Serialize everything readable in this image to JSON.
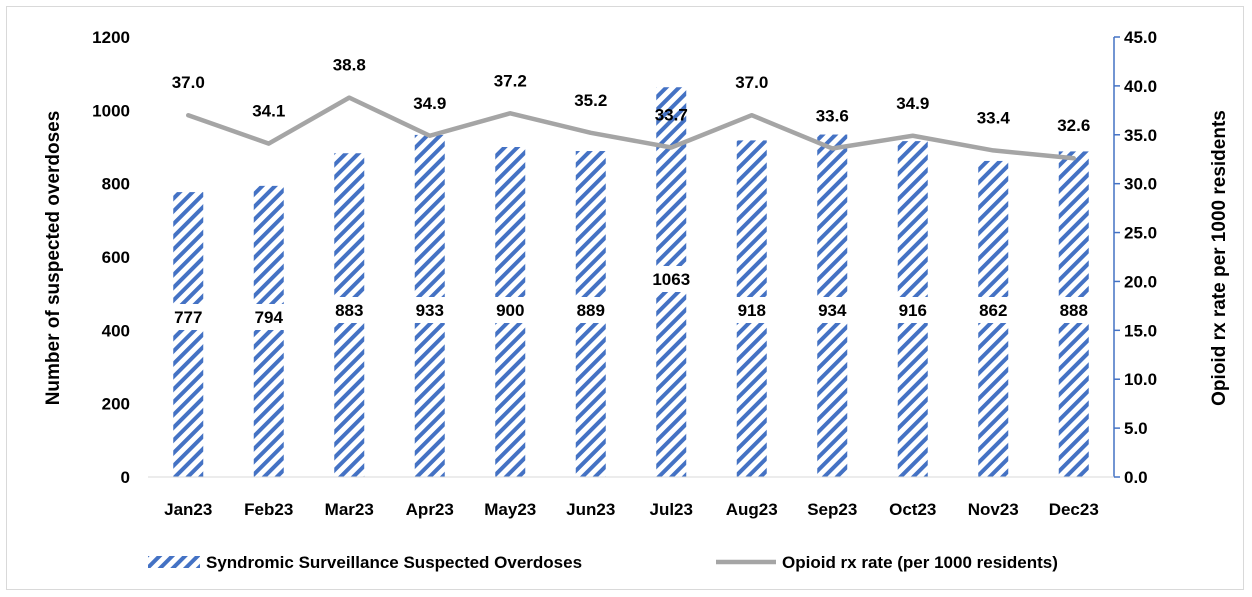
{
  "chart_data": {
    "type": "bar+line",
    "categories": [
      "Jan23",
      "Feb23",
      "Mar23",
      "Apr23",
      "May23",
      "Jun23",
      "Jul23",
      "Aug23",
      "Sep23",
      "Oct23",
      "Nov23",
      "Dec23"
    ],
    "series": [
      {
        "name": "Syndromic Surveillance Suspected Overdoses",
        "type": "bar",
        "axis": "left",
        "values": [
          777,
          794,
          883,
          933,
          900,
          889,
          1063,
          918,
          934,
          916,
          862,
          888
        ],
        "labels": [
          "777",
          "794",
          "883",
          "933",
          "900",
          "889",
          "1063",
          "918",
          "934",
          "916",
          "862",
          "888"
        ]
      },
      {
        "name": "Opioid rx rate (per 1000 residents)",
        "type": "line",
        "axis": "right",
        "values": [
          37.0,
          34.1,
          38.8,
          34.9,
          37.2,
          35.2,
          33.7,
          37.0,
          33.6,
          34.9,
          33.4,
          32.6
        ],
        "labels": [
          "37.0",
          "34.1",
          "38.8",
          "34.9",
          "37.2",
          "35.2",
          "33.7",
          "37.0",
          "33.6",
          "34.9",
          "33.4",
          "32.6"
        ]
      }
    ],
    "ylabel": "Number of suspected overdoses",
    "y2label": "Opioid rx rate per 1000 residents",
    "ylim": [
      0,
      1200
    ],
    "y2lim": [
      0,
      45
    ],
    "yticks": [
      "0",
      "200",
      "400",
      "600",
      "800",
      "1000",
      "1200"
    ],
    "y2ticks": [
      "0.0",
      "5.0",
      "10.0",
      "15.0",
      "20.0",
      "25.0",
      "30.0",
      "35.0",
      "40.0",
      "45.0"
    ],
    "legend_position": "bottom",
    "grid": false,
    "colors": {
      "bar": "#4472c4",
      "line": "#a5a5a5",
      "axis2": "#4472c4"
    }
  }
}
